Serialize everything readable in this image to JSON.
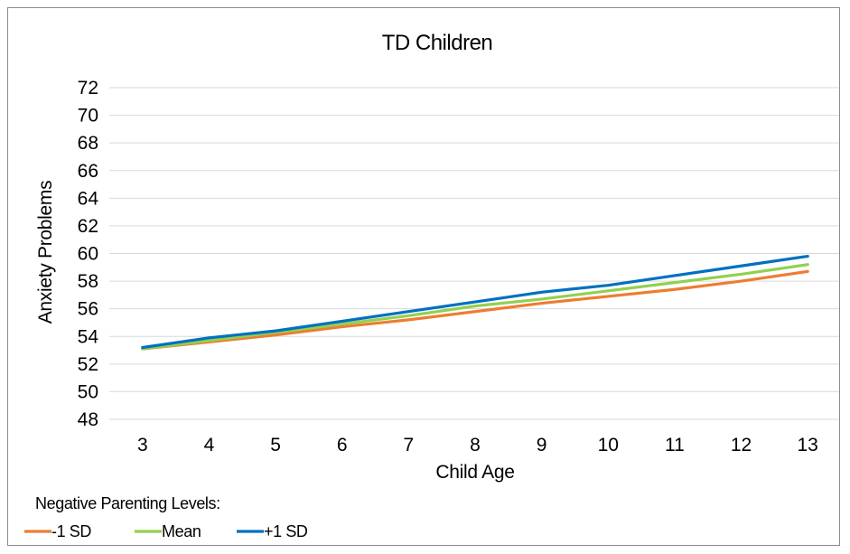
{
  "chart_data": {
    "type": "line",
    "title": "TD Children",
    "xlabel": "Child Age",
    "ylabel": "Anxiety Problems",
    "x": [
      3,
      4,
      5,
      6,
      7,
      8,
      9,
      10,
      11,
      12,
      13
    ],
    "ylim": [
      48,
      72
    ],
    "yticks": [
      48,
      50,
      52,
      54,
      56,
      58,
      60,
      62,
      64,
      66,
      68,
      70,
      72
    ],
    "grid": true,
    "legend_title": "Negative Parenting Levels:",
    "legend_position": "bottom-left",
    "series": [
      {
        "name": "-1 SD",
        "color": "#ED7D31",
        "values": [
          53.1,
          53.6,
          54.1,
          54.7,
          55.2,
          55.8,
          56.4,
          56.9,
          57.4,
          58.0,
          58.7
        ]
      },
      {
        "name": "Mean",
        "color": "#92D050",
        "values": [
          53.1,
          53.7,
          54.3,
          54.9,
          55.5,
          56.2,
          56.7,
          57.3,
          57.9,
          58.5,
          59.2
        ]
      },
      {
        "name": "+1 SD",
        "color": "#0070C0",
        "values": [
          53.2,
          53.9,
          54.4,
          55.1,
          55.8,
          56.5,
          57.2,
          57.7,
          58.4,
          59.1,
          59.8
        ]
      }
    ]
  }
}
